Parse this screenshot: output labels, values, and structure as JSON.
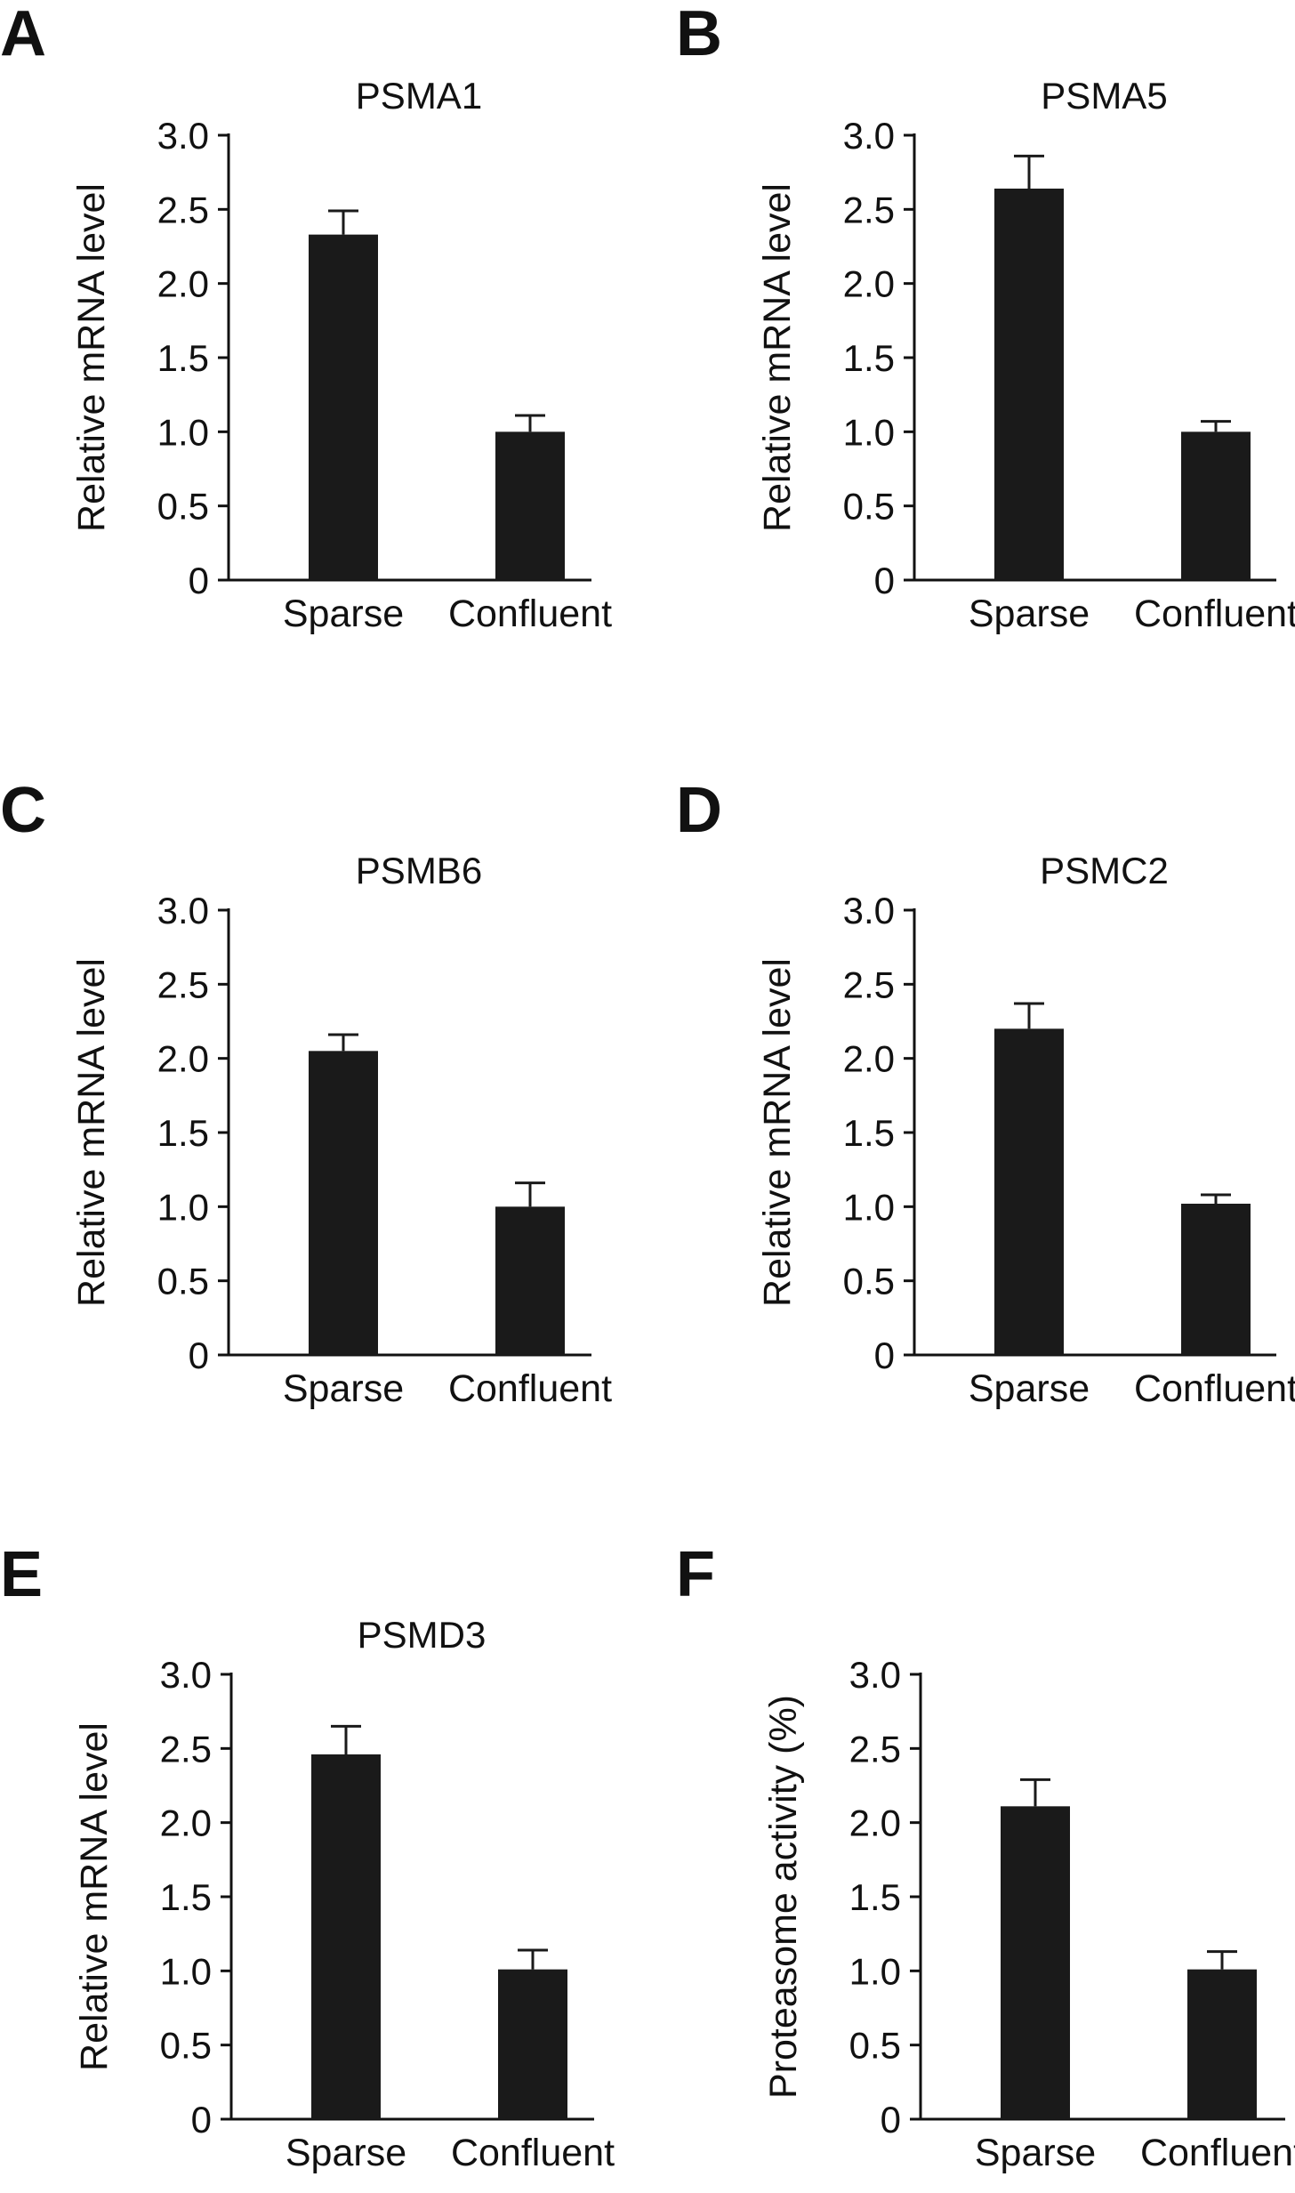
{
  "colors": {
    "bar": "#1a1a1a",
    "axis": "#111111",
    "background": "#ffffff"
  },
  "chart_data": [
    {
      "panel": "A",
      "type": "bar",
      "title": "PSMA1",
      "ylabel": "Relative mRNA level",
      "xlabel": "",
      "categories": [
        "Sparse",
        "Confluent"
      ],
      "values": [
        2.33,
        1.0
      ],
      "error": [
        0.16,
        0.11
      ],
      "ylim": [
        0,
        3.0
      ],
      "yticks": [
        "0",
        "0.5",
        "1.0",
        "1.5",
        "2.0",
        "2.5",
        "3.0"
      ],
      "grid": false
    },
    {
      "panel": "B",
      "type": "bar",
      "title": "PSMA5",
      "ylabel": "Relative mRNA level",
      "xlabel": "",
      "categories": [
        "Sparse",
        "Confluent"
      ],
      "values": [
        2.64,
        1.0
      ],
      "error": [
        0.22,
        0.07
      ],
      "ylim": [
        0,
        3.0
      ],
      "yticks": [
        "0",
        "0.5",
        "1.0",
        "1.5",
        "2.0",
        "2.5",
        "3.0"
      ],
      "grid": false
    },
    {
      "panel": "C",
      "type": "bar",
      "title": "PSMB6",
      "ylabel": "Relative mRNA level",
      "xlabel": "",
      "categories": [
        "Sparse",
        "Confluent"
      ],
      "values": [
        2.05,
        1.0
      ],
      "error": [
        0.11,
        0.16
      ],
      "ylim": [
        0,
        3.0
      ],
      "yticks": [
        "0",
        "0.5",
        "1.0",
        "1.5",
        "2.0",
        "2.5",
        "3.0"
      ],
      "grid": false
    },
    {
      "panel": "D",
      "type": "bar",
      "title": "PSMC2",
      "ylabel": "Relative mRNA level",
      "xlabel": "",
      "categories": [
        "Sparse",
        "Confluent"
      ],
      "values": [
        2.2,
        1.02
      ],
      "error": [
        0.17,
        0.06
      ],
      "ylim": [
        0,
        3.0
      ],
      "yticks": [
        "0",
        "0.5",
        "1.0",
        "1.5",
        "2.0",
        "2.5",
        "3.0"
      ],
      "grid": false
    },
    {
      "panel": "E",
      "type": "bar",
      "title": "PSMD3",
      "ylabel": "Relative mRNA level",
      "xlabel": "",
      "categories": [
        "Sparse",
        "Confluent"
      ],
      "values": [
        2.46,
        1.01
      ],
      "error": [
        0.19,
        0.13
      ],
      "ylim": [
        0,
        3.0
      ],
      "yticks": [
        "0",
        "0.5",
        "1.0",
        "1.5",
        "2.0",
        "2.5",
        "3.0"
      ],
      "grid": false
    },
    {
      "panel": "F",
      "type": "bar",
      "title": "",
      "ylabel": "Proteasome activity  (%)",
      "xlabel": "",
      "categories": [
        "Sparse",
        "Confluent"
      ],
      "values": [
        2.11,
        1.01
      ],
      "error": [
        0.18,
        0.12
      ],
      "ylim": [
        0,
        3.0
      ],
      "yticks": [
        "0",
        "0.5",
        "1.0",
        "1.5",
        "2.0",
        "2.5",
        "3.0"
      ],
      "grid": false
    }
  ]
}
